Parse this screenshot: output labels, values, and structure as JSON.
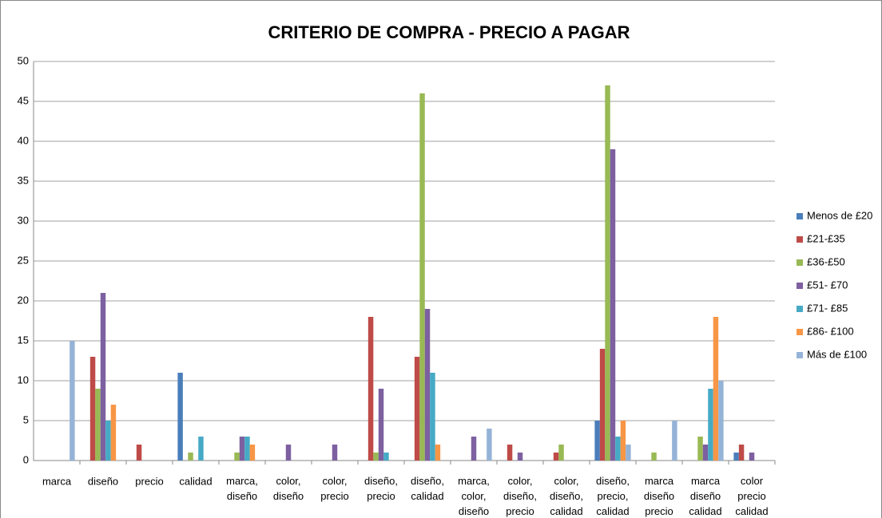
{
  "chart_data": {
    "type": "bar",
    "title": "CRITERIO DE COMPRA - PRECIO A PAGAR",
    "categories": [
      "marca",
      "diseño",
      "precio",
      "calidad",
      "marca, diseño",
      "color, diseño",
      "color, precio",
      "diseño, precio",
      "diseño, calidad",
      "marca, color, diseño",
      "color, diseño, precio",
      "color, diseño, calidad",
      "diseño, precio, calidad",
      "marca diseño precio",
      "marca diseño calidad",
      "color precio calidad"
    ],
    "series": [
      {
        "name": "Menos de £20",
        "color": "#4a7ebb",
        "values": [
          0,
          0,
          0,
          11,
          0,
          0,
          0,
          0,
          0,
          0,
          0,
          0,
          5,
          0,
          0,
          1
        ]
      },
      {
        "name": "£21-£35",
        "color": "#be4b48",
        "values": [
          0,
          13,
          2,
          0,
          0,
          0,
          0,
          18,
          13,
          0,
          2,
          1,
          14,
          0,
          0,
          2
        ]
      },
      {
        "name": "£36-£50",
        "color": "#98b954",
        "values": [
          0,
          9,
          0,
          1,
          1,
          0,
          0,
          1,
          46,
          0,
          0,
          2,
          47,
          1,
          3,
          0
        ]
      },
      {
        "name": "£51- £70",
        "color": "#7d60a0",
        "values": [
          0,
          21,
          0,
          0,
          3,
          2,
          2,
          9,
          19,
          3,
          1,
          0,
          39,
          0,
          2,
          1
        ]
      },
      {
        "name": "£71- £85",
        "color": "#46aac5",
        "values": [
          0,
          5,
          0,
          3,
          3,
          0,
          0,
          1,
          11,
          0,
          0,
          0,
          3,
          0,
          9,
          0
        ]
      },
      {
        "name": "£86- £100",
        "color": "#f79646",
        "values": [
          0,
          7,
          0,
          0,
          2,
          0,
          0,
          0,
          2,
          0,
          0,
          0,
          5,
          0,
          18,
          0
        ]
      },
      {
        "name": "Más de £100",
        "color": "#95b3d7",
        "values": [
          15,
          0,
          0,
          0,
          0,
          0,
          0,
          0,
          0,
          4,
          0,
          0,
          2,
          5,
          10,
          0
        ]
      }
    ],
    "ylim": [
      0,
      50
    ],
    "yticks": [
      0,
      5,
      10,
      15,
      20,
      25,
      30,
      35,
      40,
      45,
      50
    ],
    "grid": true,
    "legend": "right"
  }
}
